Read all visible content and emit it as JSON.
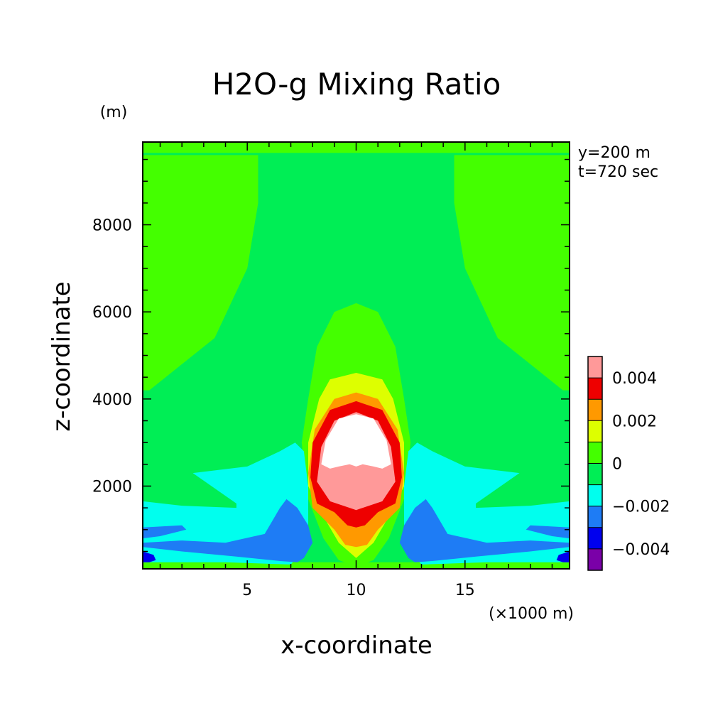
{
  "chart_data": {
    "type": "heatmap",
    "subtype": "filled-contour",
    "title": "H2O-g Mixing Ratio",
    "xlabel": "x-coordinate",
    "ylabel": "z-coordinate",
    "x_unit": "(×1000 m)",
    "y_unit": "(m)",
    "annotations": [
      "y=200 m",
      "t=720 sec"
    ],
    "xlim": [
      0.2,
      19.8
    ],
    "ylim": [
      100,
      9900
    ],
    "xticks": [
      5,
      10,
      15
    ],
    "yticks": [
      2000,
      4000,
      6000,
      8000
    ],
    "grid": false,
    "colorbar": {
      "position": "right",
      "levels": [
        -0.005,
        -0.004,
        -0.003,
        -0.002,
        -0.001,
        0,
        0.001,
        0.002,
        0.003,
        0.004,
        0.005
      ],
      "colors": [
        "#7a00a8",
        "#0000ee",
        "#1e7cf5",
        "#00ffee",
        "#00ee55",
        "#44ff00",
        "#ddff00",
        "#ff9900",
        "#ee0000",
        "#ff9999"
      ],
      "tick_values": [
        0.004,
        0.002,
        0,
        -0.002,
        -0.004
      ],
      "tick_labels": [
        "0.004",
        "0.002",
        "0",
        "−0.002",
        "−0.004"
      ]
    },
    "regions": [
      {
        "level": "0 to 0.001",
        "color": "#00ee55",
        "desc": "background"
      },
      {
        "level": "0.001 to 0.002",
        "color": "#44ff00",
        "desc": "upper-left lobe",
        "points": [
          [
            0.2,
            9600
          ],
          [
            5.5,
            9600
          ],
          [
            5.5,
            8500
          ],
          [
            5,
            7000
          ],
          [
            3.5,
            5400
          ],
          [
            0.5,
            4200
          ],
          [
            0.2,
            4200
          ]
        ]
      },
      {
        "level": "0.001 to 0.002",
        "color": "#44ff00",
        "desc": "upper-right lobe",
        "points": [
          [
            19.8,
            9600
          ],
          [
            14.5,
            9600
          ],
          [
            14.5,
            8500
          ],
          [
            15,
            7000
          ],
          [
            16.5,
            5400
          ],
          [
            19.5,
            4200
          ],
          [
            19.8,
            4200
          ]
        ]
      },
      {
        "level": "0.001 to 0.002",
        "color": "#44ff00",
        "desc": "top strip",
        "points": [
          [
            0.2,
            9900
          ],
          [
            19.8,
            9900
          ],
          [
            19.8,
            9650
          ],
          [
            0.2,
            9650
          ]
        ]
      },
      {
        "level": "0.001 to 0.002",
        "color": "#44ff00",
        "desc": "bottom strip",
        "points": [
          [
            0.2,
            250
          ],
          [
            19.8,
            250
          ],
          [
            19.8,
            100
          ],
          [
            0.2,
            100
          ]
        ]
      },
      {
        "level": "0.001 to 0.002",
        "color": "#44ff00",
        "desc": "central plume",
        "points": [
          [
            10,
            6200
          ],
          [
            11,
            6000
          ],
          [
            11.8,
            5200
          ],
          [
            12.2,
            4000
          ],
          [
            12.5,
            3000
          ],
          [
            12.2,
            1700
          ],
          [
            11.5,
            800
          ],
          [
            10.8,
            300
          ],
          [
            10,
            150
          ],
          [
            9.2,
            300
          ],
          [
            8.5,
            800
          ],
          [
            7.8,
            1700
          ],
          [
            7.5,
            3000
          ],
          [
            7.8,
            4000
          ],
          [
            8.2,
            5200
          ],
          [
            9,
            6000
          ]
        ]
      },
      {
        "level": "0.002 to 0.003",
        "color": "#ddff00",
        "desc": "plume core",
        "points": [
          [
            10,
            4600
          ],
          [
            11.2,
            4450
          ],
          [
            11.7,
            4000
          ],
          [
            12.2,
            3000
          ],
          [
            12.2,
            2000
          ],
          [
            11.5,
            1300
          ],
          [
            10.8,
            700
          ],
          [
            10,
            350
          ],
          [
            9.2,
            700
          ],
          [
            8.5,
            1300
          ],
          [
            7.8,
            2000
          ],
          [
            7.8,
            3000
          ],
          [
            8.3,
            4000
          ],
          [
            8.8,
            4450
          ]
        ]
      },
      {
        "level": "0.003 to 0.004",
        "color": "#ff9900",
        "desc": "plume core",
        "points": [
          [
            10,
            4150
          ],
          [
            11,
            4000
          ],
          [
            11.9,
            3300
          ],
          [
            12.2,
            2300
          ],
          [
            12,
            1500
          ],
          [
            11,
            1000
          ],
          [
            10.5,
            650
          ],
          [
            10,
            600
          ],
          [
            9.5,
            650
          ],
          [
            9,
            1000
          ],
          [
            8,
            1500
          ],
          [
            7.8,
            2300
          ],
          [
            8.1,
            3300
          ],
          [
            9,
            4000
          ]
        ]
      },
      {
        "level": "0.004 to 0.005",
        "color": "#ee0000",
        "desc": "plume core",
        "points": [
          [
            10,
            3950
          ],
          [
            11.2,
            3750
          ],
          [
            12,
            3000
          ],
          [
            12.1,
            2200
          ],
          [
            11.8,
            1600
          ],
          [
            11,
            1400
          ],
          [
            10.4,
            1100
          ],
          [
            10,
            1050
          ],
          [
            9.6,
            1100
          ],
          [
            9,
            1400
          ],
          [
            8.2,
            1600
          ],
          [
            7.9,
            2200
          ],
          [
            8,
            3000
          ],
          [
            8.8,
            3750
          ]
        ]
      },
      {
        "level": "> 0.005",
        "color": "#ff9999",
        "desc": "plume core",
        "points": [
          [
            10,
            3700
          ],
          [
            11,
            3500
          ],
          [
            11.6,
            2900
          ],
          [
            11.8,
            2100
          ],
          [
            11.2,
            1650
          ],
          [
            10.3,
            1500
          ],
          [
            10,
            1450
          ],
          [
            9.7,
            1500
          ],
          [
            8.8,
            1650
          ],
          [
            8.2,
            2100
          ],
          [
            8.4,
            2900
          ],
          [
            9,
            3500
          ]
        ]
      },
      {
        "level": "> 0.006",
        "color": "#ffffff",
        "desc": "plume center",
        "points": [
          [
            10,
            3650
          ],
          [
            10.8,
            3550
          ],
          [
            11.4,
            3050
          ],
          [
            11.6,
            2500
          ],
          [
            11.2,
            2400
          ],
          [
            10.8,
            2450
          ],
          [
            10.3,
            2500
          ],
          [
            10,
            2450
          ],
          [
            9.7,
            2500
          ],
          [
            9.2,
            2450
          ],
          [
            8.8,
            2400
          ],
          [
            8.4,
            2500
          ],
          [
            8.6,
            3050
          ],
          [
            9.2,
            3550
          ]
        ]
      },
      {
        "level": "-0.001 to 0",
        "color": "#00ffee",
        "desc": "lower-left tongue",
        "points": [
          [
            0.2,
            1650
          ],
          [
            2,
            1550
          ],
          [
            4.5,
            1500
          ],
          [
            4.5,
            1600
          ],
          [
            2.5,
            2300
          ],
          [
            5,
            2450
          ],
          [
            6.5,
            2800
          ],
          [
            7.2,
            3000
          ],
          [
            7.6,
            2800
          ],
          [
            7.8,
            2000
          ],
          [
            7.8,
            1000
          ],
          [
            7.5,
            500
          ],
          [
            7,
            200
          ],
          [
            4,
            250
          ],
          [
            0.2,
            250
          ]
        ]
      },
      {
        "level": "-0.001 to 0",
        "color": "#00ffee",
        "desc": "lower-right tongue",
        "points": [
          [
            19.8,
            1650
          ],
          [
            18,
            1550
          ],
          [
            15.5,
            1500
          ],
          [
            15.5,
            1600
          ],
          [
            17.5,
            2300
          ],
          [
            15,
            2450
          ],
          [
            13.5,
            2800
          ],
          [
            12.8,
            3000
          ],
          [
            12.4,
            2800
          ],
          [
            12.2,
            2000
          ],
          [
            12.2,
            1000
          ],
          [
            12.5,
            500
          ],
          [
            13,
            200
          ],
          [
            16,
            250
          ],
          [
            19.8,
            250
          ]
        ]
      },
      {
        "level": "-0.002 to -0.001",
        "color": "#1e7cf5",
        "desc": "lower-left band",
        "points": [
          [
            0.2,
            1050
          ],
          [
            2,
            1100
          ],
          [
            2.2,
            1000
          ],
          [
            1,
            850
          ],
          [
            0.2,
            800
          ]
        ]
      },
      {
        "level": "-0.002 to -0.001",
        "color": "#1e7cf5",
        "desc": "lower-left bottom",
        "points": [
          [
            0.2,
            600
          ],
          [
            2,
            500
          ],
          [
            4.5,
            380
          ],
          [
            6.5,
            280
          ],
          [
            7.3,
            250
          ],
          [
            7.6,
            350
          ],
          [
            8,
            700
          ],
          [
            7.8,
            1100
          ],
          [
            7.3,
            1500
          ],
          [
            6.8,
            1700
          ],
          [
            6.5,
            1500
          ],
          [
            5.8,
            900
          ],
          [
            4,
            700
          ],
          [
            2,
            750
          ],
          [
            0.2,
            700
          ]
        ]
      },
      {
        "level": "-0.002 to -0.001",
        "color": "#1e7cf5",
        "desc": "lower-right band",
        "points": [
          [
            19.8,
            1050
          ],
          [
            18,
            1100
          ],
          [
            17.8,
            1000
          ],
          [
            19,
            850
          ],
          [
            19.8,
            800
          ]
        ]
      },
      {
        "level": "-0.002 to -0.001",
        "color": "#1e7cf5",
        "desc": "lower-right bottom",
        "points": [
          [
            19.8,
            600
          ],
          [
            18,
            500
          ],
          [
            15.5,
            380
          ],
          [
            13.5,
            280
          ],
          [
            12.7,
            250
          ],
          [
            12.4,
            350
          ],
          [
            12,
            700
          ],
          [
            12.2,
            1100
          ],
          [
            12.7,
            1500
          ],
          [
            13.2,
            1700
          ],
          [
            13.5,
            1500
          ],
          [
            14.2,
            900
          ],
          [
            16,
            700
          ],
          [
            18,
            750
          ],
          [
            19.8,
            700
          ]
        ]
      },
      {
        "level": "-0.003 to -0.002",
        "color": "#0000ee",
        "desc": "corner minima",
        "points": [
          [
            0.2,
            500
          ],
          [
            0.7,
            420
          ],
          [
            0.8,
            300
          ],
          [
            0.5,
            250
          ],
          [
            0.2,
            250
          ]
        ]
      },
      {
        "level": "-0.003 to -0.002",
        "color": "#0000ee",
        "desc": "corner minima",
        "points": [
          [
            19.8,
            500
          ],
          [
            19.3,
            420
          ],
          [
            19.2,
            300
          ],
          [
            19.5,
            250
          ],
          [
            19.8,
            250
          ]
        ]
      }
    ]
  }
}
